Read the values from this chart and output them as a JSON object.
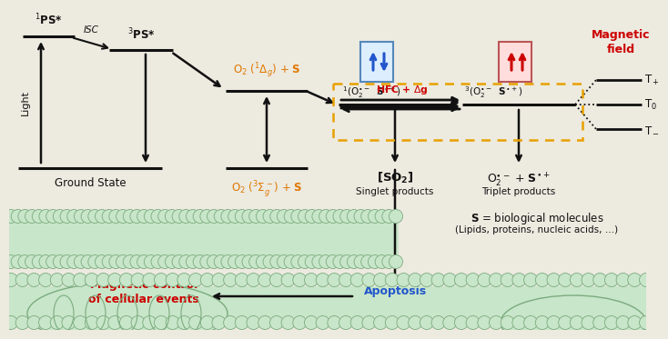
{
  "bg_color": "#edeae0",
  "orange_color": "#e07800",
  "red_color": "#cc0000",
  "blue_color": "#2255cc",
  "black_color": "#111111",
  "dashed_box_color": "#e8a000",
  "membrane_color": "#c8e6c9",
  "membrane_outline": "#7bab7e",
  "ps1_label": "$^1$PS*",
  "ps3_label": "$^3$PS*",
  "gs_label": "Ground State",
  "isc_label": "ISC",
  "light_label": "Light",
  "o2_singlet_label": "O$_2$ ($^1\\Delta_g$) + $\\mathbf{S}$",
  "o2_triplet_label": "O$_2$ ($^3\\Sigma_g^-$) + $\\mathbf{S}$",
  "sing_rad_label": "$^1$(O$_2^{\\bullet-}$  $\\mathbf{S}^{\\bullet+}$)",
  "hfc_label": "HFC + \\Delta g",
  "trip_rad_label": "$^3$(O$_2^{\\bullet-}$  $\\mathbf{S}^{\\bullet+}$)",
  "so2_label": "[$\\mathbf{SO_2}$]",
  "sing_prod_label": "Singlet products",
  "trip_prod_label2": "O$_2^{\\bullet-}$ + $\\mathbf{S}^{\\bullet+}$",
  "trip_prod_label": "Triplet products",
  "mag_label": "Magnetic\nfield",
  "t_plus": "T$_+$",
  "t_zero": "T$_0$",
  "t_minus": "T$_-$",
  "bio_label1": "$\\mathbf{S}$ = biological molecules",
  "bio_label2": "(Lipids, proteins, nucleic acids, …)",
  "apoptosis_label": "Apoptosis",
  "mag_ctrl1": "Magnetic control",
  "mag_ctrl2": "of cellular events"
}
